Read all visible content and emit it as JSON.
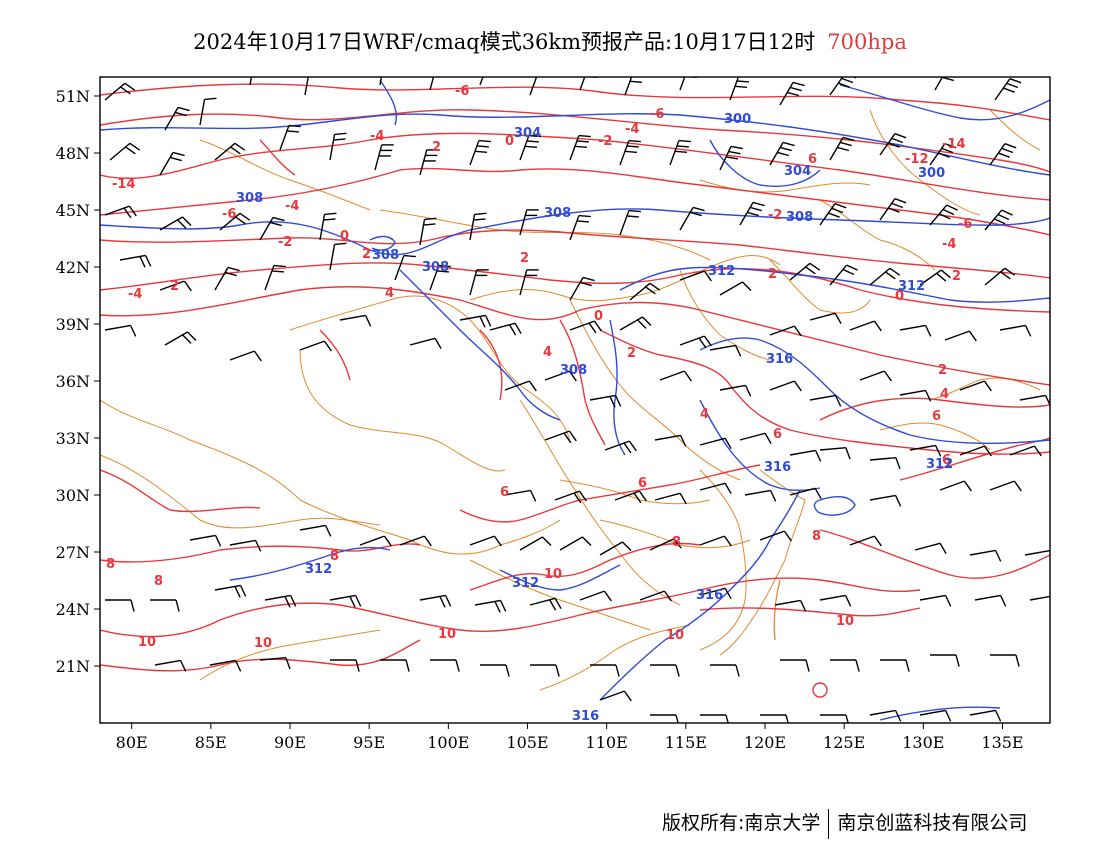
{
  "title": {
    "main": "2024年10月17日WRF/cmaq模式36km预报产品:10月17日12时",
    "level": "700hpa",
    "level_color": "#e23a3a"
  },
  "axes": {
    "lon_labels": [
      "80E",
      "85E",
      "90E",
      "95E",
      "100E",
      "105E",
      "110E",
      "115E",
      "120E",
      "125E",
      "130E",
      "135E"
    ],
    "lat_labels": [
      "51N",
      "48N",
      "45N",
      "42N",
      "39N",
      "36N",
      "33N",
      "30N",
      "27N",
      "24N",
      "21N"
    ],
    "lon_values": [
      80,
      85,
      90,
      95,
      100,
      105,
      110,
      115,
      120,
      125,
      130,
      135
    ],
    "lat_values": [
      51,
      48,
      45,
      42,
      39,
      36,
      33,
      30,
      27,
      24,
      21
    ],
    "lon_range": [
      78,
      138
    ],
    "lat_range": [
      18,
      52
    ]
  },
  "colors": {
    "temperature": "#e8383c",
    "geopotential": "#2f4bd6",
    "boundary": "#e08a2e",
    "wind": "#000000"
  },
  "temperature_labels": [
    "-6",
    "-4",
    "-2",
    "0",
    "2",
    "4",
    "6",
    "8",
    "10",
    "-12",
    "-14"
  ],
  "geopotential_labels": [
    "300",
    "304",
    "308",
    "312",
    "316"
  ],
  "footer": {
    "copyright_label": "版权所有:",
    "owner1": "南京大学",
    "owner2": "南京创蓝科技有限公司"
  }
}
